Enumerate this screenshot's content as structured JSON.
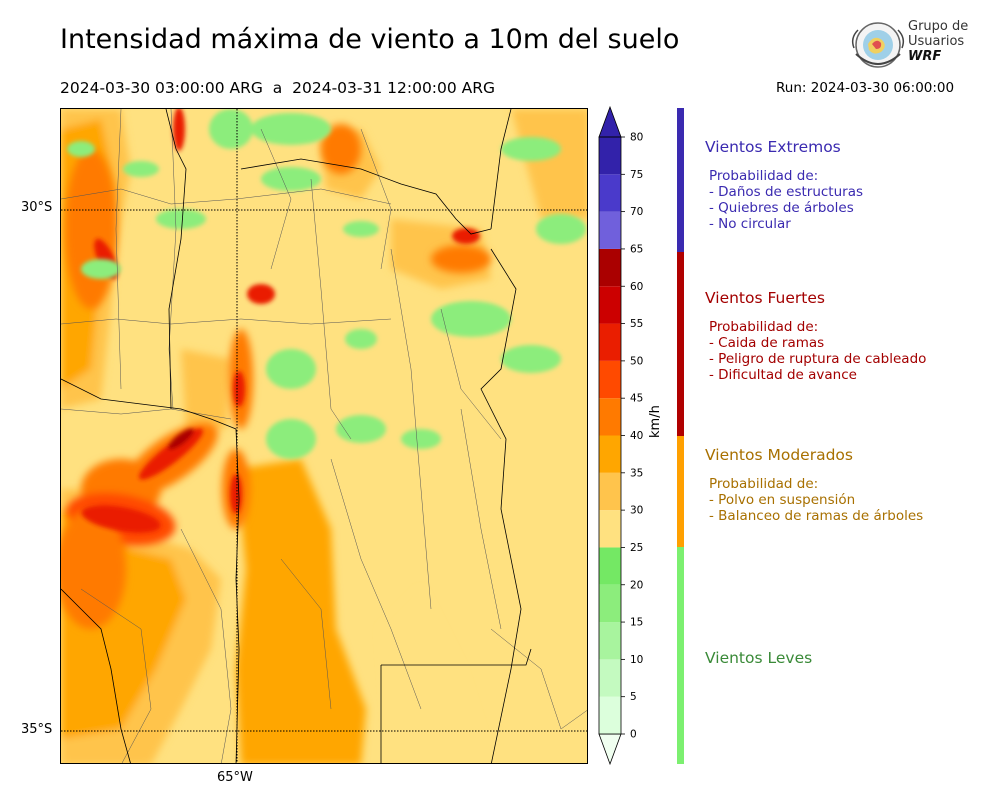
{
  "header": {
    "title": "Intensidad máxima de viento a 10m del suelo",
    "period": "2024-03-30 03:00:00 ARG  a  2024-03-31 12:00:00 ARG",
    "run": "Run: 2024-03-30 06:00:00"
  },
  "logo": {
    "line1": "Grupo de",
    "line2": "Usuarios",
    "line3": "WRF"
  },
  "map": {
    "lat_labels": [
      "30°S",
      "35°S"
    ],
    "lon_labels": [
      "65°W"
    ]
  },
  "colorbar": {
    "unit": "km/h",
    "ticks": [
      "0",
      "5",
      "10",
      "15",
      "20",
      "25",
      "30",
      "35",
      "40",
      "45",
      "50",
      "55",
      "60",
      "65",
      "70",
      "75",
      "80"
    ],
    "colors": [
      "#f0fff0",
      "#dcffdc",
      "#c4fac0",
      "#a8f49e",
      "#8ced7c",
      "#74e864",
      "#ffe180",
      "#ffc44c",
      "#ffa600",
      "#ff7a00",
      "#ff4a00",
      "#ea1e00",
      "#cc0000",
      "#aa0000",
      "#7060dc",
      "#4a3acb",
      "#3222aa"
    ]
  },
  "categories": [
    {
      "name": "Vientos Extremos",
      "color": "#3a2ab0",
      "text_color": "#3a2ab0",
      "lines": [
        "Probabilidad de:",
        "- Daños de estructuras",
        "- Quiebres de árboles",
        "- No circular"
      ]
    },
    {
      "name": "Vientos Fuertes",
      "color": "#b00000",
      "text_color": "#a30000",
      "lines": [
        "Probabilidad de:",
        "- Caida de ramas",
        "- Peligro de ruptura de cableado",
        "- Dificultad de avance"
      ]
    },
    {
      "name": "Vientos Moderados",
      "color": "#ffa000",
      "text_color": "#a87000",
      "lines": [
        "Probabilidad de:",
        "- Polvo en suspensión",
        "- Balanceo de ramas de árboles"
      ]
    },
    {
      "name": "Vientos Leves",
      "color": "#7cf070",
      "text_color": "#3a8a38",
      "lines": []
    }
  ]
}
